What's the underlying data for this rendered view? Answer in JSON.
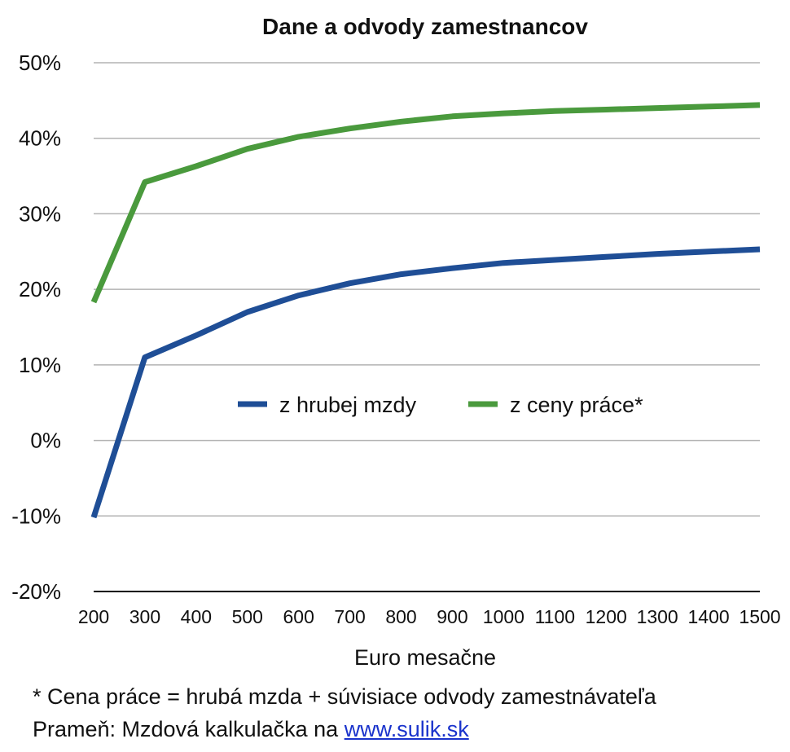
{
  "chart_data": {
    "type": "line",
    "title": "Dane a odvody zamestnancov",
    "xlabel": "Euro mesačne",
    "ylabel": "",
    "categories": [
      "200",
      "300",
      "400",
      "500",
      "600",
      "700",
      "800",
      "900",
      "1000",
      "1100",
      "1200",
      "1300",
      "1400",
      "1500"
    ],
    "ylim": [
      -20,
      50
    ],
    "yticks": [
      -20,
      -10,
      0,
      10,
      20,
      30,
      40,
      50
    ],
    "ytick_labels": [
      "-20%",
      "-10%",
      "0%",
      "10%",
      "20%",
      "30%",
      "40%",
      "50%"
    ],
    "grid": true,
    "legend_position": "center",
    "series": [
      {
        "name": "z hrubej mzdy",
        "color": "#1f4e96",
        "values": [
          -10.2,
          11.0,
          13.9,
          17.0,
          19.2,
          20.8,
          22.0,
          22.8,
          23.5,
          23.9,
          24.3,
          24.7,
          25.0,
          25.3
        ]
      },
      {
        "name": "z ceny práce*",
        "color": "#4a9a3d",
        "values": [
          18.3,
          34.2,
          36.3,
          38.6,
          40.2,
          41.3,
          42.2,
          42.9,
          43.3,
          43.6,
          43.8,
          44.0,
          44.2,
          44.4
        ]
      }
    ]
  },
  "footnotes": {
    "note": "* Cena práce = hrubá mzda + súvisiace odvody zamestnávateľa",
    "source_prefix": "Prameň: Mzdová kalkulačka na ",
    "source_link": "www.sulik.sk"
  }
}
